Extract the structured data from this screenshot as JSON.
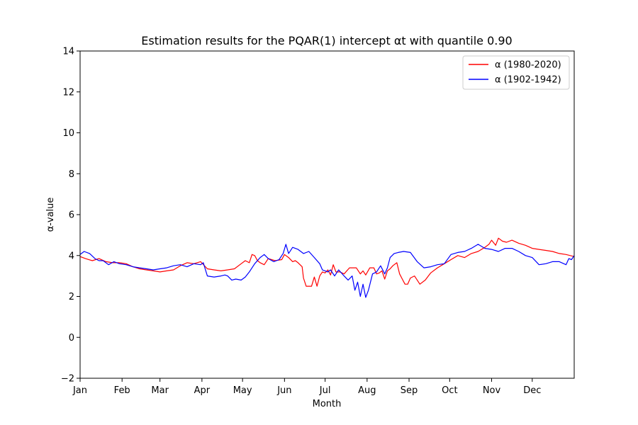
{
  "chart_data": {
    "type": "line",
    "title": "Estimation results for the PQAR(1) intercept αt with quantile 0.90",
    "xlabel": "Month",
    "ylabel": "α-value",
    "xlim": [
      1,
      366
    ],
    "ylim": [
      -2,
      14
    ],
    "yticks": [
      -2,
      0,
      2,
      4,
      6,
      8,
      10,
      12,
      14
    ],
    "yticklabels": [
      "−2",
      "0",
      "2",
      "4",
      "6",
      "8",
      "10",
      "12",
      "14"
    ],
    "xticks": [
      {
        "day": 1,
        "label": "Jan"
      },
      {
        "day": 32,
        "label": "Feb"
      },
      {
        "day": 60,
        "label": "Mar"
      },
      {
        "day": 91,
        "label": "Apr"
      },
      {
        "day": 121,
        "label": "May"
      },
      {
        "day": 152,
        "label": "Jun"
      },
      {
        "day": 182,
        "label": "Jul"
      },
      {
        "day": 213,
        "label": "Aug"
      },
      {
        "day": 244,
        "label": "Sep"
      },
      {
        "day": 274,
        "label": "Oct"
      },
      {
        "day": 305,
        "label": "Nov"
      },
      {
        "day": 335,
        "label": "Dec"
      }
    ],
    "grid": false,
    "legend_position": "top-right",
    "series": [
      {
        "name": "α (1980-2020)",
        "color": "#ff0000",
        "x": [
          1,
          5,
          10,
          15,
          20,
          25,
          30,
          35,
          40,
          45,
          50,
          55,
          60,
          65,
          70,
          75,
          80,
          85,
          90,
          95,
          100,
          105,
          110,
          115,
          120,
          123,
          126,
          128,
          130,
          132,
          134,
          137,
          140,
          145,
          150,
          152,
          155,
          158,
          160,
          162,
          165,
          166,
          168,
          170,
          172,
          174,
          176,
          178,
          180,
          182,
          184,
          186,
          188,
          190,
          193,
          196,
          200,
          205,
          208,
          210,
          212,
          215,
          218,
          220,
          222,
          224,
          226,
          228,
          230,
          232,
          235,
          237,
          239,
          241,
          243,
          245,
          248,
          252,
          256,
          260,
          265,
          270,
          275,
          280,
          285,
          290,
          295,
          300,
          303,
          305,
          308,
          310,
          313,
          316,
          320,
          325,
          330,
          335,
          340,
          345,
          350,
          355,
          360,
          366
        ],
        "y": [
          3.95,
          3.85,
          3.75,
          3.85,
          3.7,
          3.65,
          3.65,
          3.6,
          3.45,
          3.35,
          3.3,
          3.25,
          3.2,
          3.25,
          3.3,
          3.5,
          3.65,
          3.6,
          3.7,
          3.35,
          3.3,
          3.25,
          3.3,
          3.35,
          3.6,
          3.75,
          3.65,
          4.05,
          4.0,
          3.75,
          3.65,
          3.55,
          3.85,
          3.75,
          3.8,
          4.05,
          3.9,
          3.7,
          3.75,
          3.65,
          3.45,
          2.9,
          2.5,
          2.5,
          2.5,
          2.95,
          2.5,
          3.0,
          3.2,
          3.15,
          3.3,
          3.05,
          3.55,
          3.2,
          3.2,
          3.1,
          3.4,
          3.4,
          3.1,
          3.25,
          3.05,
          3.4,
          3.4,
          3.1,
          3.15,
          3.25,
          2.85,
          3.25,
          3.35,
          3.5,
          3.65,
          3.1,
          2.85,
          2.6,
          2.6,
          2.9,
          3.0,
          2.6,
          2.8,
          3.15,
          3.4,
          3.6,
          3.8,
          4.0,
          3.9,
          4.1,
          4.2,
          4.4,
          4.55,
          4.75,
          4.5,
          4.85,
          4.7,
          4.65,
          4.75,
          4.6,
          4.5,
          4.35,
          4.3,
          4.25,
          4.2,
          4.1,
          4.05,
          3.95
        ]
      },
      {
        "name": "α (1902-1942)",
        "color": "#0000ff",
        "x": [
          1,
          4,
          8,
          12,
          15,
          18,
          22,
          26,
          30,
          35,
          40,
          45,
          50,
          55,
          60,
          65,
          70,
          75,
          80,
          85,
          90,
          92,
          95,
          100,
          105,
          108,
          110,
          113,
          116,
          120,
          123,
          126,
          130,
          134,
          137,
          140,
          144,
          148,
          151,
          153,
          155,
          158,
          162,
          166,
          170,
          174,
          178,
          180,
          184,
          186,
          189,
          192,
          196,
          199,
          202,
          204,
          206,
          208,
          210,
          212,
          214,
          217,
          220,
          223,
          226,
          228,
          230,
          233,
          236,
          240,
          245,
          250,
          255,
          260,
          265,
          270,
          275,
          280,
          285,
          290,
          295,
          300,
          305,
          310,
          315,
          320,
          325,
          330,
          335,
          340,
          345,
          350,
          355,
          360,
          362,
          364,
          366
        ],
        "y": [
          4.05,
          4.2,
          4.1,
          3.85,
          3.75,
          3.75,
          3.55,
          3.7,
          3.6,
          3.55,
          3.45,
          3.4,
          3.35,
          3.3,
          3.35,
          3.4,
          3.5,
          3.55,
          3.45,
          3.6,
          3.55,
          3.65,
          3.0,
          2.95,
          3.0,
          3.05,
          3.0,
          2.8,
          2.85,
          2.8,
          2.95,
          3.2,
          3.6,
          3.9,
          4.05,
          3.85,
          3.7,
          3.8,
          4.1,
          4.55,
          4.1,
          4.4,
          4.3,
          4.1,
          4.2,
          3.9,
          3.6,
          3.3,
          3.2,
          3.3,
          3.0,
          3.3,
          3.0,
          2.8,
          3.0,
          2.3,
          2.7,
          2.0,
          2.6,
          1.95,
          2.3,
          3.1,
          3.2,
          3.5,
          3.1,
          3.4,
          3.9,
          4.1,
          4.15,
          4.2,
          4.15,
          3.7,
          3.4,
          3.45,
          3.55,
          3.6,
          4.05,
          4.15,
          4.2,
          4.35,
          4.55,
          4.35,
          4.3,
          4.2,
          4.35,
          4.35,
          4.2,
          4.0,
          3.9,
          3.55,
          3.6,
          3.7,
          3.7,
          3.55,
          3.85,
          3.8,
          4.0
        ]
      }
    ]
  }
}
